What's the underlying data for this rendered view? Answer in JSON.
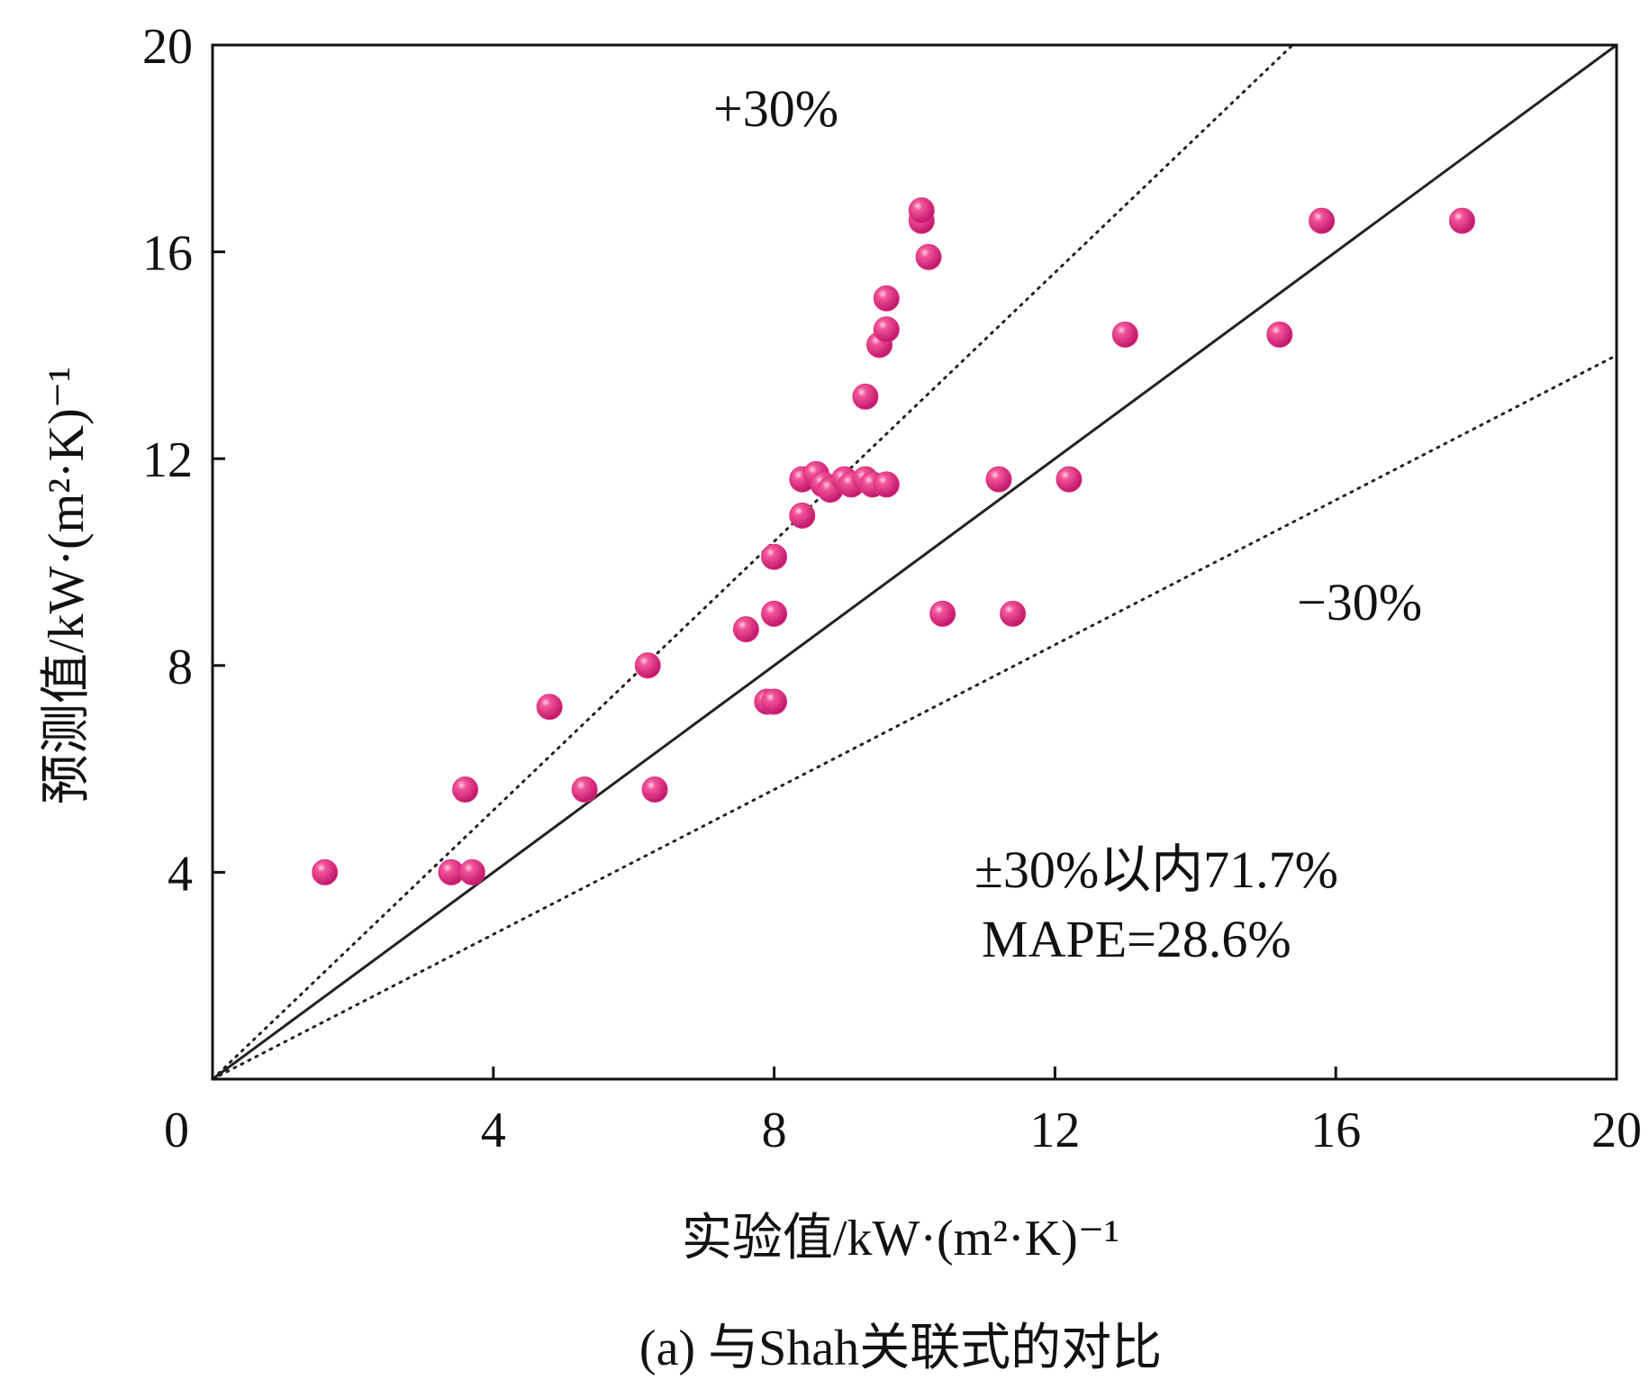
{
  "chart_data": {
    "type": "scatter",
    "title": "",
    "caption": "(a) 与Shah关联式的对比",
    "xlabel": "实验值/kW·(m²·K)⁻¹",
    "ylabel": "预测值/kW·(m²·K)⁻¹",
    "xlim": [
      0,
      20
    ],
    "ylim": [
      0,
      20
    ],
    "xticks": [
      0,
      4,
      8,
      12,
      16,
      20
    ],
    "yticks": [
      4,
      8,
      12,
      16,
      20
    ],
    "grid": false,
    "legend": "none",
    "marker_color": "#e0337f",
    "reference_lines": [
      {
        "name": "parity",
        "slope": 1.0,
        "style": "solid"
      },
      {
        "name": "+30%",
        "slope": 1.3,
        "style": "dotted"
      },
      {
        "name": "-30%",
        "slope": 0.7,
        "style": "dotted"
      }
    ],
    "annotations": {
      "plus30": "+30%",
      "minus30": "−30%",
      "within": "±30%以内71.7%",
      "mape": "MAPE=28.6%"
    },
    "points": [
      {
        "x": 1.6,
        "y": 4.0
      },
      {
        "x": 3.4,
        "y": 4.0
      },
      {
        "x": 3.7,
        "y": 4.0
      },
      {
        "x": 3.6,
        "y": 5.6
      },
      {
        "x": 4.8,
        "y": 7.2
      },
      {
        "x": 5.3,
        "y": 5.6
      },
      {
        "x": 6.2,
        "y": 8.0
      },
      {
        "x": 6.3,
        "y": 5.6
      },
      {
        "x": 7.6,
        "y": 8.7
      },
      {
        "x": 7.9,
        "y": 7.3
      },
      {
        "x": 8.0,
        "y": 7.3
      },
      {
        "x": 8.0,
        "y": 9.0
      },
      {
        "x": 8.0,
        "y": 10.1
      },
      {
        "x": 8.4,
        "y": 10.9
      },
      {
        "x": 8.4,
        "y": 11.6
      },
      {
        "x": 8.6,
        "y": 11.7
      },
      {
        "x": 8.7,
        "y": 11.5
      },
      {
        "x": 8.8,
        "y": 11.4
      },
      {
        "x": 9.0,
        "y": 11.6
      },
      {
        "x": 9.1,
        "y": 11.5
      },
      {
        "x": 9.3,
        "y": 11.6
      },
      {
        "x": 9.4,
        "y": 11.5
      },
      {
        "x": 9.6,
        "y": 11.5
      },
      {
        "x": 9.3,
        "y": 13.2
      },
      {
        "x": 9.5,
        "y": 14.2
      },
      {
        "x": 9.6,
        "y": 14.5
      },
      {
        "x": 9.6,
        "y": 15.1
      },
      {
        "x": 10.1,
        "y": 16.6
      },
      {
        "x": 10.1,
        "y": 16.8
      },
      {
        "x": 10.2,
        "y": 15.9
      },
      {
        "x": 10.4,
        "y": 9.0
      },
      {
        "x": 11.4,
        "y": 9.0
      },
      {
        "x": 11.2,
        "y": 11.6
      },
      {
        "x": 12.2,
        "y": 11.6
      },
      {
        "x": 13.0,
        "y": 14.4
      },
      {
        "x": 15.2,
        "y": 14.4
      },
      {
        "x": 15.8,
        "y": 16.6
      },
      {
        "x": 17.8,
        "y": 16.6
      }
    ]
  }
}
